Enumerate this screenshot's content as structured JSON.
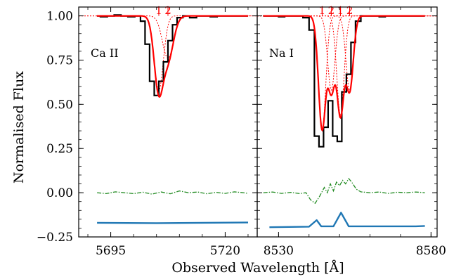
{
  "chart_data": {
    "type": "line",
    "ylabel": "Normalised Flux",
    "xlabel": "Observed Wavelength [Å]",
    "ylim": [
      -0.25,
      1.05
    ],
    "yticks": [
      -0.25,
      0.0,
      0.25,
      0.5,
      0.75,
      1.0
    ],
    "ytick_labels": [
      "−0.25",
      "0.00",
      "0.25",
      "0.50",
      "0.75",
      "1.00"
    ],
    "colors": {
      "data": "#000000",
      "model": "#ff0000",
      "components": "#ff0000",
      "residual": "#228b22",
      "offset": "#1f77b4"
    },
    "panels": [
      {
        "label": "Ca II",
        "xlim": [
          5688,
          5727
        ],
        "xticks": [
          5695,
          5720
        ],
        "xtick_labels": [
          "5695",
          "5720"
        ],
        "components": [
          {
            "label": "1",
            "center": 5705.5,
            "depth": 0.42,
            "sigma": 1.0
          },
          {
            "label": "2",
            "center": 5707.5,
            "depth": 0.24,
            "sigma": 1.2
          }
        ],
        "flux_steps": [
          [
            5692.0,
            1.0
          ],
          [
            5693.5,
            0.995
          ],
          [
            5695.0,
            1.0
          ],
          [
            5696.5,
            1.005
          ],
          [
            5698.0,
            1.0
          ],
          [
            5699.5,
            0.995
          ],
          [
            5701.0,
            1.0
          ],
          [
            5702.0,
            0.97
          ],
          [
            5703.0,
            0.84
          ],
          [
            5704.0,
            0.63
          ],
          [
            5705.0,
            0.55
          ],
          [
            5706.0,
            0.63
          ],
          [
            5707.0,
            0.74
          ],
          [
            5708.0,
            0.86
          ],
          [
            5709.0,
            0.95
          ],
          [
            5710.0,
            0.99
          ],
          [
            5711.5,
            1.0
          ],
          [
            5713.0,
            0.99
          ],
          [
            5714.5,
            1.0
          ],
          [
            5716.0,
            1.0
          ],
          [
            5717.5,
            0.995
          ],
          [
            5719.0,
            1.0
          ],
          [
            5720.5,
            1.0
          ],
          [
            5722.0,
            1.0
          ],
          [
            5723.5,
            1.0
          ],
          [
            5725.0,
            1.0
          ]
        ],
        "residual": [
          [
            5692,
            0.0
          ],
          [
            5694,
            -0.005
          ],
          [
            5696,
            0.005
          ],
          [
            5698,
            0.0
          ],
          [
            5700,
            -0.005
          ],
          [
            5702,
            0.003
          ],
          [
            5704,
            -0.008
          ],
          [
            5706,
            0.004
          ],
          [
            5708,
            -0.006
          ],
          [
            5710,
            0.01
          ],
          [
            5712,
            0.0
          ],
          [
            5714,
            0.004
          ],
          [
            5716,
            -0.006
          ],
          [
            5718,
            0.002
          ],
          [
            5720,
            -0.004
          ],
          [
            5722,
            0.005
          ],
          [
            5724,
            0.0
          ],
          [
            5725,
            -0.004
          ]
        ],
        "offset_line": [
          [
            5692,
            -0.17
          ],
          [
            5705,
            -0.172
          ],
          [
            5725,
            -0.168
          ]
        ]
      },
      {
        "label": "Na I",
        "xlim": [
          8523,
          8582
        ],
        "xticks": [
          8530,
          8580
        ],
        "xtick_labels": [
          "8530",
          "8580"
        ],
        "components": [
          {
            "label": "1",
            "center": 8544.3,
            "depth": 0.64,
            "sigma": 1.2
          },
          {
            "label": "2",
            "center": 8547.3,
            "depth": 0.42,
            "sigma": 1.2
          },
          {
            "label": "1",
            "center": 8550.3,
            "depth": 0.56,
            "sigma": 1.2
          },
          {
            "label": "2",
            "center": 8553.3,
            "depth": 0.42,
            "sigma": 1.2
          }
        ],
        "flux_steps": [
          [
            8525.0,
            1.0
          ],
          [
            8527.0,
            1.0
          ],
          [
            8529.0,
            1.0
          ],
          [
            8531.0,
            0.995
          ],
          [
            8533.0,
            1.0
          ],
          [
            8535.0,
            1.0
          ],
          [
            8537.0,
            1.0
          ],
          [
            8539.0,
            0.99
          ],
          [
            8541.0,
            0.92
          ],
          [
            8542.5,
            0.32
          ],
          [
            8544.0,
            0.26
          ],
          [
            8545.5,
            0.37
          ],
          [
            8547.0,
            0.52
          ],
          [
            8548.5,
            0.32
          ],
          [
            8550.0,
            0.29
          ],
          [
            8551.5,
            0.57
          ],
          [
            8553.0,
            0.67
          ],
          [
            8554.5,
            0.85
          ],
          [
            8556.0,
            0.97
          ],
          [
            8558.0,
            1.0
          ],
          [
            8560.0,
            1.0
          ],
          [
            8562.0,
            1.0
          ],
          [
            8564.0,
            0.995
          ],
          [
            8566.0,
            1.0
          ],
          [
            8568.0,
            1.0
          ],
          [
            8570.0,
            1.0
          ],
          [
            8572.0,
            1.0
          ],
          [
            8574.0,
            1.0
          ],
          [
            8576.0,
            1.0
          ],
          [
            8578.0,
            1.0
          ]
        ],
        "residual": [
          [
            8525,
            0.0
          ],
          [
            8528,
            0.004
          ],
          [
            8531,
            -0.004
          ],
          [
            8534,
            0.002
          ],
          [
            8537,
            -0.005
          ],
          [
            8539,
            0.0
          ],
          [
            8540.5,
            -0.04
          ],
          [
            8542,
            -0.06
          ],
          [
            8543.5,
            -0.02
          ],
          [
            8545,
            0.03
          ],
          [
            8546,
            0.0
          ],
          [
            8547,
            0.05
          ],
          [
            8548,
            0.01
          ],
          [
            8549,
            0.06
          ],
          [
            8550,
            0.04
          ],
          [
            8551,
            0.07
          ],
          [
            8552,
            0.05
          ],
          [
            8553,
            0.08
          ],
          [
            8554,
            0.06
          ],
          [
            8555.5,
            0.02
          ],
          [
            8557,
            0.005
          ],
          [
            8560,
            0.0
          ],
          [
            8563,
            0.004
          ],
          [
            8566,
            -0.004
          ],
          [
            8569,
            0.003
          ],
          [
            8572,
            0.0
          ],
          [
            8575,
            0.004
          ],
          [
            8578,
            0.0
          ]
        ],
        "offset_line": [
          [
            8527,
            -0.195
          ],
          [
            8540,
            -0.192
          ],
          [
            8542.5,
            -0.155
          ],
          [
            8544,
            -0.19
          ],
          [
            8548,
            -0.19
          ],
          [
            8550.5,
            -0.113
          ],
          [
            8553,
            -0.19
          ],
          [
            8575,
            -0.19
          ],
          [
            8578,
            -0.188
          ]
        ]
      }
    ]
  }
}
